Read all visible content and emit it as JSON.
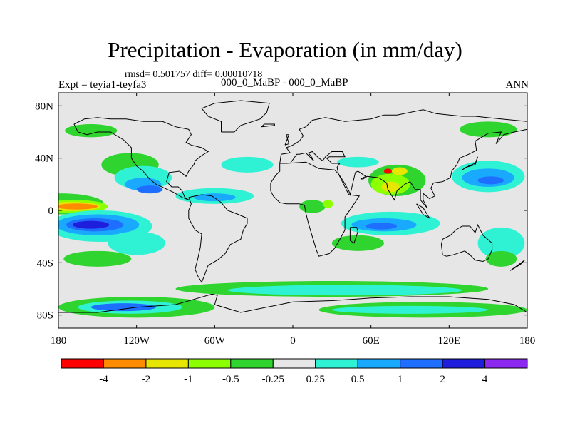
{
  "title": "Precipitation - Evaporation (in mm/day)",
  "stats": "rmsd= 0.501757 diff= 0.00010718",
  "subtitle": "000_0_MaBP - 000_0_MaBP",
  "expt": "Expt = teyia1-teyfa3",
  "season": "ANN",
  "map": {
    "lon_range": [
      -180,
      180
    ],
    "lat_range": [
      -90,
      90
    ],
    "x_ticks": [
      {
        "value": -180,
        "label": "180"
      },
      {
        "value": -120,
        "label": "120W"
      },
      {
        "value": -60,
        "label": "60W"
      },
      {
        "value": 0,
        "label": "0"
      },
      {
        "value": 60,
        "label": "60E"
      },
      {
        "value": 120,
        "label": "120E"
      },
      {
        "value": 180,
        "label": "180"
      }
    ],
    "y_ticks": [
      {
        "value": 80,
        "label": "80N"
      },
      {
        "value": 40,
        "label": "40N"
      },
      {
        "value": 0,
        "label": "0"
      },
      {
        "value": -40,
        "label": "40S"
      },
      {
        "value": -80,
        "label": "80S"
      }
    ],
    "background_color": "#e6e6e6"
  },
  "colorbar": {
    "colors": [
      "#ff0000",
      "#ff8c00",
      "#e6e600",
      "#8cff00",
      "#2fd42f",
      "#e6e6e6",
      "#2ff2d4",
      "#19aaff",
      "#1e6eff",
      "#1e1edc",
      "#8c28f0"
    ],
    "labels": [
      "-4",
      "-2",
      "-1",
      "-0.5",
      "-0.25",
      "0.25",
      "0.5",
      "1",
      "2",
      "4"
    ]
  },
  "regions": [
    {
      "name": "ncentral-pac-green",
      "lon": -178,
      "lat": 5,
      "rx": 33,
      "ry": 8,
      "color": "#2fd42f"
    },
    {
      "name": "ncentral-pac-lgreen",
      "lon": -168,
      "lat": 3,
      "rx": 26,
      "ry": 5,
      "color": "#8cff00"
    },
    {
      "name": "ncentral-pac-yellow",
      "lon": -170,
      "lat": 3,
      "rx": 22,
      "ry": 3.5,
      "color": "#e6e600"
    },
    {
      "name": "ncentral-pac-orange",
      "lon": -166,
      "lat": 3,
      "rx": 16,
      "ry": 2.3,
      "color": "#ff8c00"
    },
    {
      "name": "npac-green",
      "lon": -125,
      "lat": 35,
      "rx": 22,
      "ry": 9,
      "color": "#2fd42f"
    },
    {
      "name": "npac-cyan",
      "lon": -115,
      "lat": 25,
      "rx": 22,
      "ry": 9,
      "color": "#2ff2d4"
    },
    {
      "name": "npac-lblue",
      "lon": -115,
      "lat": 20,
      "rx": 14,
      "ry": 5,
      "color": "#19aaff"
    },
    {
      "name": "npac-blue",
      "lon": -110,
      "lat": 16,
      "rx": 10,
      "ry": 3,
      "color": "#1e6eff"
    },
    {
      "name": "natl-cyan",
      "lon": -60,
      "lat": 11,
      "rx": 30,
      "ry": 6,
      "color": "#2ff2d4"
    },
    {
      "name": "natl-lblue",
      "lon": -60,
      "lat": 10,
      "rx": 16,
      "ry": 3,
      "color": "#19aaff"
    },
    {
      "name": "natl-north-cyan",
      "lon": -35,
      "lat": 35,
      "rx": 20,
      "ry": 6,
      "color": "#2ff2d4"
    },
    {
      "name": "arctic-green",
      "lon": -155,
      "lat": 61,
      "rx": 20,
      "ry": 5,
      "color": "#2fd42f"
    },
    {
      "name": "siberia-green",
      "lon": 150,
      "lat": 62,
      "rx": 22,
      "ry": 6,
      "color": "#2fd42f"
    },
    {
      "name": "nw-pac-cyan",
      "lon": 150,
      "lat": 26,
      "rx": 28,
      "ry": 12,
      "color": "#2ff2d4"
    },
    {
      "name": "nw-pac-lblue",
      "lon": 150,
      "lat": 25,
      "rx": 20,
      "ry": 7,
      "color": "#19aaff"
    },
    {
      "name": "nw-pac-blue",
      "lon": 152,
      "lat": 23,
      "rx": 10,
      "ry": 3,
      "color": "#1e6eff"
    },
    {
      "name": "asia-green",
      "lon": 80,
      "lat": 23,
      "rx": 22,
      "ry": 12,
      "color": "#2fd42f"
    },
    {
      "name": "asia-lgreen",
      "lon": 75,
      "lat": 20,
      "rx": 15,
      "ry": 8,
      "color": "#8cff00"
    },
    {
      "name": "asia-yellow",
      "lon": 75,
      "lat": 18,
      "rx": 7,
      "ry": 4,
      "color": "#e6e600"
    },
    {
      "name": "asia-red",
      "lon": 73,
      "lat": 30,
      "rx": 3,
      "ry": 2,
      "color": "#ff0000"
    },
    {
      "name": "asia-yellow-north",
      "lon": 82,
      "lat": 30,
      "rx": 6,
      "ry": 3,
      "color": "#e6e600"
    },
    {
      "name": "asia-cyan",
      "lon": 50,
      "lat": 37,
      "rx": 16,
      "ry": 4,
      "color": "#2ff2d4"
    },
    {
      "name": "africa-green",
      "lon": 15,
      "lat": 3,
      "rx": 10,
      "ry": 5,
      "color": "#2fd42f"
    },
    {
      "name": "africa-lgreen",
      "lon": 27,
      "lat": 5,
      "rx": 4,
      "ry": 3,
      "color": "#8cff00"
    },
    {
      "name": "indian-cyan",
      "lon": 75,
      "lat": -10,
      "rx": 38,
      "ry": 9,
      "color": "#2ff2d4"
    },
    {
      "name": "indian-lblue",
      "lon": 70,
      "lat": -11,
      "rx": 25,
      "ry": 5,
      "color": "#19aaff"
    },
    {
      "name": "indian-blue",
      "lon": 68,
      "lat": -12,
      "rx": 12,
      "ry": 2.5,
      "color": "#1e6eff"
    },
    {
      "name": "indian-green",
      "lon": 50,
      "lat": -25,
      "rx": 20,
      "ry": 6,
      "color": "#2fd42f"
    },
    {
      "name": "aus-cyan",
      "lon": 160,
      "lat": -25,
      "rx": 18,
      "ry": 12,
      "color": "#2ff2d4"
    },
    {
      "name": "aus-green",
      "lon": 160,
      "lat": -37,
      "rx": 12,
      "ry": 6,
      "color": "#2fd42f"
    },
    {
      "name": "spac-cyan",
      "lon": -148,
      "lat": -12,
      "rx": 40,
      "ry": 12,
      "color": "#2ff2d4"
    },
    {
      "name": "spac-lblue",
      "lon": -150,
      "lat": -11,
      "rx": 32,
      "ry": 8,
      "color": "#19aaff"
    },
    {
      "name": "spac-blue",
      "lon": -152,
      "lat": -11,
      "rx": 22,
      "ry": 5,
      "color": "#1e6eff"
    },
    {
      "name": "spac-dblue",
      "lon": -155,
      "lat": -11,
      "rx": 14,
      "ry": 3,
      "color": "#1e1edc"
    },
    {
      "name": "spac-green",
      "lon": -150,
      "lat": -37,
      "rx": 26,
      "ry": 6,
      "color": "#2fd42f"
    },
    {
      "name": "spac-cyan-south",
      "lon": -120,
      "lat": -25,
      "rx": 22,
      "ry": 9,
      "color": "#2ff2d4"
    },
    {
      "name": "southern-green",
      "lon": 30,
      "lat": -60,
      "rx": 120,
      "ry": 6,
      "color": "#2fd42f"
    },
    {
      "name": "southern-cyan",
      "lon": 40,
      "lat": -61,
      "rx": 90,
      "ry": 4,
      "color": "#2ff2d4"
    },
    {
      "name": "antarctic-green",
      "lon": -120,
      "lat": -74,
      "rx": 60,
      "ry": 8,
      "color": "#2fd42f"
    },
    {
      "name": "antarctic-cyan",
      "lon": -125,
      "lat": -74,
      "rx": 40,
      "ry": 5,
      "color": "#2ff2d4"
    },
    {
      "name": "antarctic-blue",
      "lon": -130,
      "lat": -74,
      "rx": 25,
      "ry": 3,
      "color": "#1e6eff"
    },
    {
      "name": "antarctic-green-east",
      "lon": 100,
      "lat": -76,
      "rx": 80,
      "ry": 6,
      "color": "#2fd42f"
    },
    {
      "name": "antarctic-cyan-east",
      "lon": 90,
      "lat": -76,
      "rx": 60,
      "ry": 3,
      "color": "#2ff2d4"
    }
  ],
  "coastlines": [
    [
      [
        -168,
        66
      ],
      [
        -160,
        70
      ],
      [
        -150,
        71
      ],
      [
        -140,
        70
      ],
      [
        -128,
        70
      ],
      [
        -115,
        68
      ],
      [
        -100,
        68
      ],
      [
        -90,
        64
      ],
      [
        -80,
        62
      ],
      [
        -78,
        58
      ],
      [
        -82,
        52
      ],
      [
        -78,
        50
      ],
      [
        -70,
        48
      ],
      [
        -65,
        45
      ],
      [
        -70,
        42
      ],
      [
        -75,
        38
      ],
      [
        -76,
        35
      ],
      [
        -80,
        30
      ],
      [
        -82,
        26
      ],
      [
        -87,
        30
      ],
      [
        -95,
        29
      ],
      [
        -97,
        22
      ],
      [
        -93,
        18
      ],
      [
        -88,
        18
      ],
      [
        -85,
        15
      ],
      [
        -83,
        10
      ],
      [
        -80,
        8
      ],
      [
        -85,
        10
      ],
      [
        -92,
        14
      ],
      [
        -105,
        20
      ],
      [
        -110,
        24
      ],
      [
        -115,
        30
      ],
      [
        -120,
        34
      ],
      [
        -124,
        40
      ],
      [
        -124,
        48
      ],
      [
        -130,
        54
      ],
      [
        -140,
        60
      ],
      [
        -150,
        60
      ],
      [
        -158,
        58
      ],
      [
        -165,
        60
      ],
      [
        -168,
        66
      ]
    ],
    [
      [
        -80,
        10
      ],
      [
        -75,
        11
      ],
      [
        -70,
        12
      ],
      [
        -62,
        11
      ],
      [
        -55,
        6
      ],
      [
        -50,
        0
      ],
      [
        -42,
        -3
      ],
      [
        -35,
        -6
      ],
      [
        -35,
        -10
      ],
      [
        -38,
        -15
      ],
      [
        -40,
        -22
      ],
      [
        -48,
        -26
      ],
      [
        -52,
        -33
      ],
      [
        -58,
        -38
      ],
      [
        -65,
        -42
      ],
      [
        -68,
        -50
      ],
      [
        -70,
        -55
      ],
      [
        -73,
        -50
      ],
      [
        -75,
        -45
      ],
      [
        -73,
        -37
      ],
      [
        -71,
        -28
      ],
      [
        -70,
        -18
      ],
      [
        -75,
        -15
      ],
      [
        -80,
        -6
      ],
      [
        -80,
        0
      ],
      [
        -78,
        5
      ],
      [
        -80,
        10
      ]
    ],
    [
      [
        -55,
        60
      ],
      [
        -45,
        60
      ],
      [
        -40,
        65
      ],
      [
        -25,
        70
      ],
      [
        -20,
        75
      ],
      [
        -18,
        82
      ],
      [
        -40,
        84
      ],
      [
        -60,
        82
      ],
      [
        -70,
        78
      ],
      [
        -65,
        72
      ],
      [
        -55,
        68
      ],
      [
        -55,
        60
      ]
    ],
    [
      [
        -10,
        36
      ],
      [
        -5,
        36
      ],
      [
        10,
        37
      ],
      [
        20,
        32
      ],
      [
        32,
        31
      ],
      [
        35,
        28
      ],
      [
        43,
        12
      ],
      [
        51,
        11
      ],
      [
        45,
        2
      ],
      [
        40,
        -5
      ],
      [
        40,
        -15
      ],
      [
        35,
        -24
      ],
      [
        32,
        -29
      ],
      [
        28,
        -33
      ],
      [
        20,
        -35
      ],
      [
        18,
        -30
      ],
      [
        15,
        -20
      ],
      [
        12,
        -10
      ],
      [
        10,
        -2
      ],
      [
        9,
        4
      ],
      [
        5,
        5
      ],
      [
        -5,
        5
      ],
      [
        -10,
        6
      ],
      [
        -15,
        11
      ],
      [
        -17,
        15
      ],
      [
        -17,
        21
      ],
      [
        -13,
        27
      ],
      [
        -10,
        30
      ],
      [
        -10,
        36
      ]
    ],
    [
      [
        -10,
        36
      ],
      [
        -9,
        43
      ],
      [
        -2,
        44
      ],
      [
        -5,
        48
      ],
      [
        0,
        50
      ],
      [
        5,
        53
      ],
      [
        8,
        57
      ],
      [
        5,
        62
      ],
      [
        10,
        64
      ],
      [
        15,
        69
      ],
      [
        25,
        71
      ],
      [
        40,
        68
      ],
      [
        60,
        70
      ],
      [
        70,
        73
      ],
      [
        80,
        73
      ],
      [
        100,
        77
      ],
      [
        110,
        74
      ],
      [
        130,
        72
      ],
      [
        140,
        72
      ],
      [
        160,
        70
      ],
      [
        180,
        68
      ]
    ],
    [
      [
        180,
        62
      ],
      [
        170,
        60
      ],
      [
        162,
        58
      ],
      [
        156,
        51
      ],
      [
        160,
        60
      ],
      [
        150,
        59
      ],
      [
        140,
        53
      ],
      [
        141,
        46
      ],
      [
        135,
        43
      ],
      [
        128,
        40
      ],
      [
        126,
        35
      ],
      [
        122,
        30
      ],
      [
        121,
        25
      ],
      [
        115,
        22
      ],
      [
        108,
        21
      ],
      [
        106,
        17
      ],
      [
        109,
        11
      ],
      [
        105,
        9
      ],
      [
        100,
        13
      ],
      [
        100,
        8
      ],
      [
        103,
        2
      ],
      [
        98,
        8
      ],
      [
        98,
        16
      ],
      [
        94,
        16
      ],
      [
        90,
        22
      ],
      [
        86,
        20
      ],
      [
        80,
        15
      ],
      [
        78,
        8
      ],
      [
        73,
        16
      ],
      [
        72,
        21
      ],
      [
        66,
        25
      ],
      [
        57,
        26
      ],
      [
        54,
        24
      ],
      [
        52,
        24
      ],
      [
        56,
        26
      ],
      [
        50,
        30
      ],
      [
        48,
        29
      ],
      [
        44,
        12
      ],
      [
        43,
        15
      ],
      [
        39,
        22
      ],
      [
        35,
        28
      ],
      [
        34,
        33
      ],
      [
        36,
        36
      ],
      [
        30,
        36
      ],
      [
        26,
        40
      ],
      [
        28,
        41
      ],
      [
        40,
        41
      ],
      [
        38,
        45
      ],
      [
        30,
        45
      ],
      [
        25,
        41
      ],
      [
        23,
        38
      ],
      [
        20,
        40
      ],
      [
        15,
        45
      ],
      [
        12,
        44
      ],
      [
        15,
        40
      ],
      [
        16,
        38
      ],
      [
        10,
        44
      ],
      [
        5,
        43
      ],
      [
        3,
        43
      ],
      [
        -2,
        36
      ]
    ],
    [
      [
        115,
        -22
      ],
      [
        114,
        -26
      ],
      [
        115,
        -34
      ],
      [
        118,
        -35
      ],
      [
        123,
        -34
      ],
      [
        132,
        -31
      ],
      [
        136,
        -34
      ],
      [
        140,
        -38
      ],
      [
        146,
        -39
      ],
      [
        150,
        -37
      ],
      [
        153,
        -30
      ],
      [
        153,
        -25
      ],
      [
        146,
        -19
      ],
      [
        142,
        -11
      ],
      [
        140,
        -17
      ],
      [
        136,
        -12
      ],
      [
        130,
        -12
      ],
      [
        125,
        -15
      ],
      [
        121,
        -19
      ],
      [
        115,
        -22
      ]
    ],
    [
      [
        -180,
        -78
      ],
      [
        -150,
        -78
      ],
      [
        -120,
        -74
      ],
      [
        -90,
        -72
      ],
      [
        -62,
        -64
      ],
      [
        -58,
        -65
      ],
      [
        -60,
        -72
      ],
      [
        -40,
        -78
      ],
      [
        0,
        -70
      ],
      [
        30,
        -69
      ],
      [
        60,
        -67
      ],
      [
        90,
        -66
      ],
      [
        120,
        -66
      ],
      [
        150,
        -68
      ],
      [
        170,
        -72
      ],
      [
        180,
        -78
      ]
    ],
    [
      [
        44,
        -13
      ],
      [
        49,
        -13
      ],
      [
        50,
        -16
      ],
      [
        47,
        -25
      ],
      [
        44,
        -23
      ],
      [
        44,
        -13
      ]
    ],
    [
      [
        95,
        5
      ],
      [
        100,
        2
      ],
      [
        105,
        -6
      ],
      [
        100,
        -3
      ],
      [
        95,
        5
      ]
    ],
    [
      [
        130,
        31
      ],
      [
        135,
        34
      ],
      [
        140,
        36
      ],
      [
        142,
        41
      ],
      [
        140,
        35
      ],
      [
        133,
        33
      ],
      [
        130,
        31
      ]
    ],
    [
      [
        -6,
        50
      ],
      [
        -3,
        58
      ],
      [
        -5,
        58
      ],
      [
        -3,
        51
      ],
      [
        -6,
        50
      ]
    ],
    [
      [
        -24,
        64
      ],
      [
        -14,
        65
      ],
      [
        -14,
        66
      ],
      [
        -22,
        66
      ],
      [
        -24,
        64
      ]
    ],
    [
      [
        167,
        -46
      ],
      [
        174,
        -41
      ],
      [
        178,
        -38
      ],
      [
        175,
        -41
      ],
      [
        172,
        -43
      ],
      [
        167,
        -46
      ]
    ]
  ]
}
